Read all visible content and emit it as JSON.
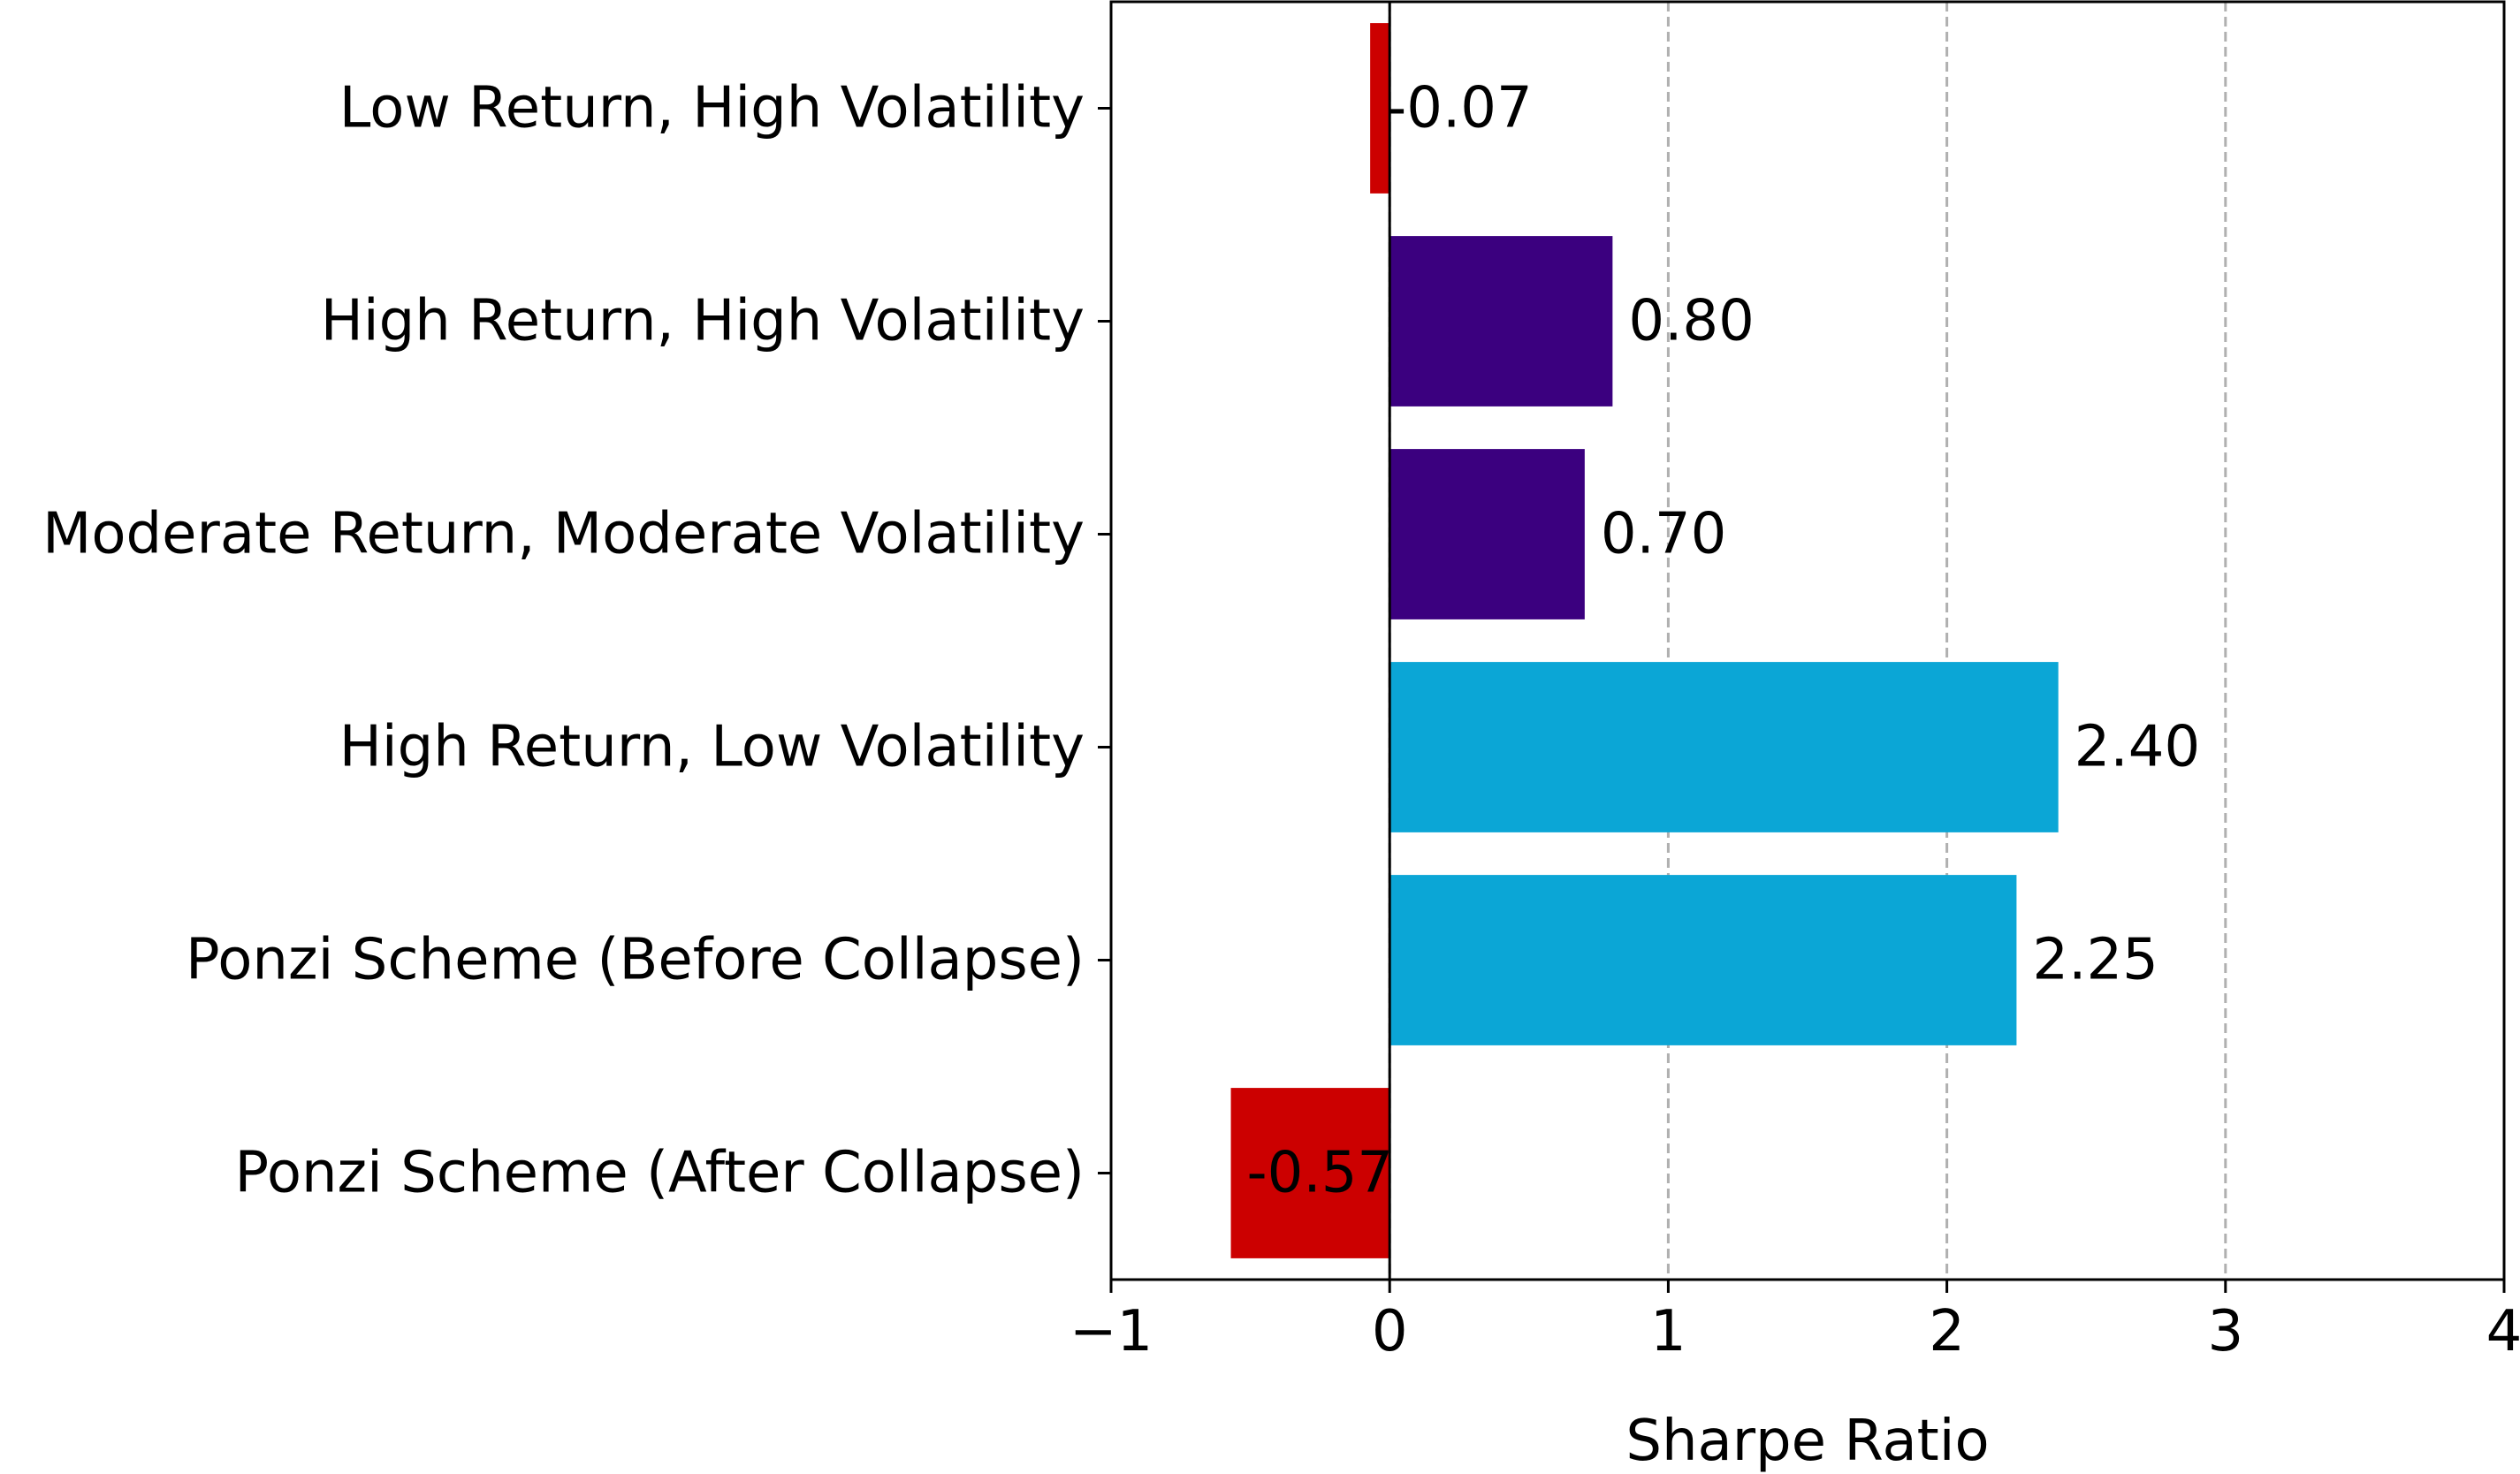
{
  "chart_data": {
    "type": "bar",
    "orientation": "horizontal",
    "title": "",
    "xlabel": "Sharpe Ratio",
    "ylabel": "",
    "xlim": [
      -1,
      4
    ],
    "xticks": [
      -1,
      0,
      1,
      2,
      3,
      4
    ],
    "xtick_labels": [
      "−1",
      "0",
      "1",
      "2",
      "3",
      "4"
    ],
    "grid": "x dashed",
    "categories": [
      "Low Return, High Volatility",
      "High Return, High Volatility",
      "Moderate Return, Moderate Volatility",
      "High Return, Low Volatility",
      "Ponzi Scheme (Before Collapse)",
      "Ponzi Scheme (After Collapse)"
    ],
    "values": [
      -0.07,
      0.8,
      0.7,
      2.4,
      2.25,
      -0.57
    ],
    "value_labels": [
      "-0.07",
      "0.80",
      "0.70",
      "2.40",
      "2.25",
      "-0.57"
    ],
    "colors": [
      "#cc0000",
      "#3b007f",
      "#3b007f",
      "#0ba6d6",
      "#0ba6d6",
      "#cc0000"
    ]
  }
}
